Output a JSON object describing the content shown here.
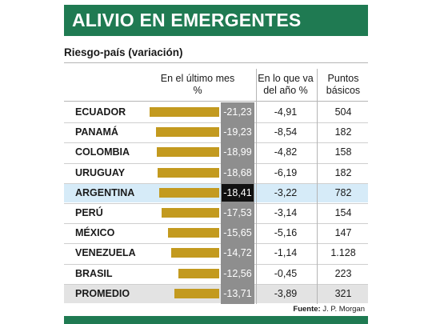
{
  "title": "ALIVIO EN EMERGENTES",
  "chart_data": {
    "type": "bar",
    "title": "ALIVIO EN EMERGENTES",
    "subtitle": "Riesgo-país (variación)",
    "columns": [
      "En el último mes %",
      "En lo que va del año %",
      "Puntos básicos"
    ],
    "categories": [
      "ECUADOR",
      "PANAMÁ",
      "COLOMBIA",
      "URUGUAY",
      "ARGENTINA",
      "PERÚ",
      "MÉXICO",
      "VENEZUELA",
      "BRASIL",
      "PROMEDIO"
    ],
    "series": [
      {
        "name": "En el último mes %",
        "values": [
          -21.23,
          -19.23,
          -18.99,
          -18.68,
          -18.41,
          -17.53,
          -15.65,
          -14.72,
          -12.56,
          -13.71
        ]
      }
    ],
    "rows": [
      {
        "country": "ECUADOR",
        "month": "-21,23",
        "ytd": "-4,91",
        "bp": "504",
        "month_value": -21.23
      },
      {
        "country": "PANAMÁ",
        "month": "-19,23",
        "ytd": "-8,54",
        "bp": "182",
        "month_value": -19.23
      },
      {
        "country": "COLOMBIA",
        "month": "-18,99",
        "ytd": "-4,82",
        "bp": "158",
        "month_value": -18.99
      },
      {
        "country": "URUGUAY",
        "month": "-18,68",
        "ytd": "-6,19",
        "bp": "182",
        "month_value": -18.68
      },
      {
        "country": "ARGENTINA",
        "month": "-18,41",
        "ytd": "-3,22",
        "bp": "782",
        "month_value": -18.41,
        "highlight": true
      },
      {
        "country": "PERÚ",
        "month": "-17,53",
        "ytd": "-3,14",
        "bp": "154",
        "month_value": -17.53
      },
      {
        "country": "MÉXICO",
        "month": "-15,65",
        "ytd": "-5,16",
        "bp": "147",
        "month_value": -15.65
      },
      {
        "country": "VENEZUELA",
        "month": "-14,72",
        "ytd": "-1,14",
        "bp": "1.128",
        "month_value": -14.72
      },
      {
        "country": "BRASIL",
        "month": "-12,56",
        "ytd": "-0,45",
        "bp": "223",
        "month_value": -12.56
      },
      {
        "country": "PROMEDIO",
        "month": "-13,71",
        "ytd": "-3,89",
        "bp": "321",
        "month_value": -13.71,
        "average": true
      }
    ],
    "xlim": [
      -21.23,
      0
    ],
    "legend": "none",
    "grid": false,
    "colors": {
      "bar": "#c39a1f",
      "header": "#1f7a52",
      "value_column": "#8e8e8e",
      "highlight_row": "#d6ebf8",
      "average_row": "#e3e3e3"
    }
  },
  "headers": {
    "month_line1": "En el último mes",
    "month_line2": "%",
    "ytd_line1": "En lo que va",
    "ytd_line2": "del año %",
    "bp_line1": "Puntos",
    "bp_line2": "básicos"
  },
  "source_label": "Fuente:",
  "source_value": "J. P. Morgan"
}
